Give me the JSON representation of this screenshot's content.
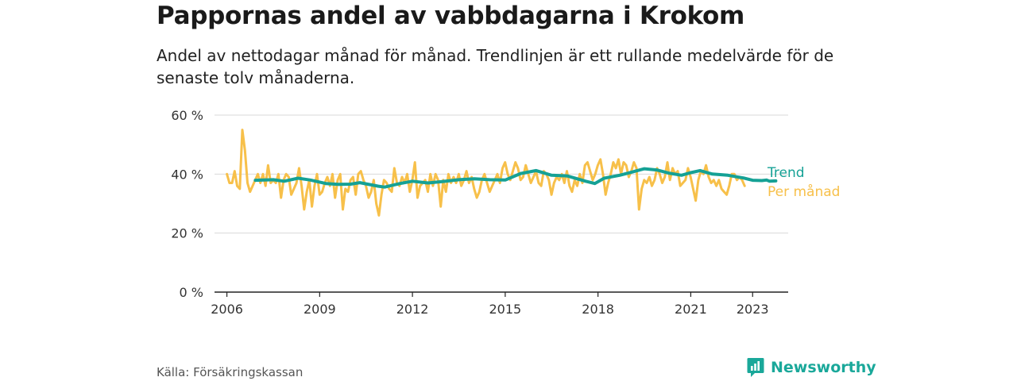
{
  "header": {
    "title": "Pappornas andel av vabbdagarna i Krokom",
    "subtitle": "Andel av nettodagar månad för månad. Trendlinjen är ett rullande medelvärde för de senaste tolv månaderna."
  },
  "footer": {
    "source": "Källa: Försäkringskassan",
    "brand": "Newsworthy"
  },
  "colors": {
    "trend": "#15a195",
    "monthly": "#f7c04a",
    "grid": "#d9d9d9",
    "axis": "#222222"
  },
  "chart_data": {
    "type": "line",
    "title": "Pappornas andel av vabbdagarna i Krokom",
    "xlabel": "",
    "ylabel": "",
    "xlim": [
      2005.6,
      2024.15
    ],
    "ylim": [
      0,
      60
    ],
    "x_ticks": [
      2006,
      2009,
      2012,
      2015,
      2018,
      2021,
      2023
    ],
    "x_tick_labels": [
      "2006",
      "2009",
      "2012",
      "2015",
      "2018",
      "2021",
      "2023"
    ],
    "y_ticks": [
      0,
      20,
      40,
      60
    ],
    "y_tick_labels": [
      "0 %",
      "20 %",
      "40 %",
      "60 %"
    ],
    "grid": true,
    "legend": "right, labels at line ends",
    "series": [
      {
        "name": "Per månad",
        "x_start": 2006.0,
        "x_step": 0.0833,
        "values": [
          40,
          37,
          37,
          41,
          36,
          35,
          55,
          48,
          37,
          34,
          36,
          38,
          40,
          37,
          40,
          36,
          43,
          37,
          38,
          37,
          40,
          32,
          38,
          40,
          39,
          33,
          35,
          37,
          42,
          36,
          28,
          34,
          38,
          29,
          36,
          40,
          33,
          34,
          37,
          39,
          36,
          40,
          32,
          38,
          40,
          28,
          35,
          34,
          38,
          39,
          33,
          40,
          41,
          38,
          36,
          32,
          34,
          38,
          30,
          26,
          33,
          38,
          37,
          35,
          34,
          42,
          37,
          36,
          39,
          37,
          40,
          34,
          38,
          44,
          32,
          36,
          37,
          38,
          34,
          40,
          36,
          40,
          38,
          29,
          38,
          34,
          40,
          37,
          39,
          37,
          40,
          36,
          38,
          41,
          37,
          39,
          35,
          32,
          34,
          38,
          40,
          37,
          34,
          36,
          38,
          40,
          37,
          42,
          44,
          40,
          38,
          41,
          44,
          42,
          38,
          39,
          43,
          40,
          37,
          39,
          41,
          37,
          36,
          41,
          40,
          38,
          33,
          37,
          39,
          38,
          40,
          37,
          41,
          36,
          34,
          38,
          36,
          40,
          37,
          43,
          44,
          41,
          38,
          40,
          43,
          45,
          40,
          33,
          37,
          40,
          44,
          42,
          45,
          40,
          44,
          43,
          39,
          41,
          44,
          42,
          28,
          35,
          38,
          37,
          39,
          36,
          38,
          42,
          40,
          37,
          39,
          44,
          38,
          42,
          40,
          41,
          36,
          37,
          38,
          42,
          39,
          35,
          31,
          38,
          41,
          40,
          43,
          39,
          37,
          38,
          36,
          38,
          35,
          34,
          33,
          36,
          40,
          40,
          38,
          39,
          38,
          36
        ]
      },
      {
        "name": "Trend",
        "points": [
          [
            2006.92,
            37.9
          ],
          [
            2007.5,
            38.1
          ],
          [
            2007.85,
            37.6
          ],
          [
            2008.3,
            38.6
          ],
          [
            2008.7,
            38.0
          ],
          [
            2009.2,
            36.8
          ],
          [
            2009.6,
            36.5
          ],
          [
            2010.0,
            36.6
          ],
          [
            2010.3,
            37.1
          ],
          [
            2010.9,
            35.9
          ],
          [
            2011.1,
            35.6
          ],
          [
            2011.6,
            36.8
          ],
          [
            2012.0,
            37.6
          ],
          [
            2012.5,
            37.0
          ],
          [
            2013.0,
            37.5
          ],
          [
            2013.5,
            38.1
          ],
          [
            2014.0,
            38.4
          ],
          [
            2014.5,
            38.1
          ],
          [
            2015.0,
            38.0
          ],
          [
            2015.5,
            40.2
          ],
          [
            2016.0,
            41.2
          ],
          [
            2016.5,
            39.6
          ],
          [
            2017.0,
            39.4
          ],
          [
            2017.6,
            37.6
          ],
          [
            2017.9,
            36.8
          ],
          [
            2018.2,
            38.6
          ],
          [
            2018.7,
            39.6
          ],
          [
            2019.0,
            40.4
          ],
          [
            2019.5,
            41.8
          ],
          [
            2019.9,
            41.4
          ],
          [
            2020.3,
            40.3
          ],
          [
            2020.7,
            39.6
          ],
          [
            2021.0,
            40.5
          ],
          [
            2021.3,
            41.2
          ],
          [
            2021.7,
            40.0
          ],
          [
            2022.2,
            39.6
          ],
          [
            2022.7,
            38.7
          ],
          [
            2023.0,
            37.9
          ],
          [
            2023.3,
            37.8
          ],
          [
            2023.45,
            38.0
          ],
          [
            2023.55,
            37.6
          ],
          [
            2023.75,
            37.7
          ]
        ]
      }
    ]
  }
}
